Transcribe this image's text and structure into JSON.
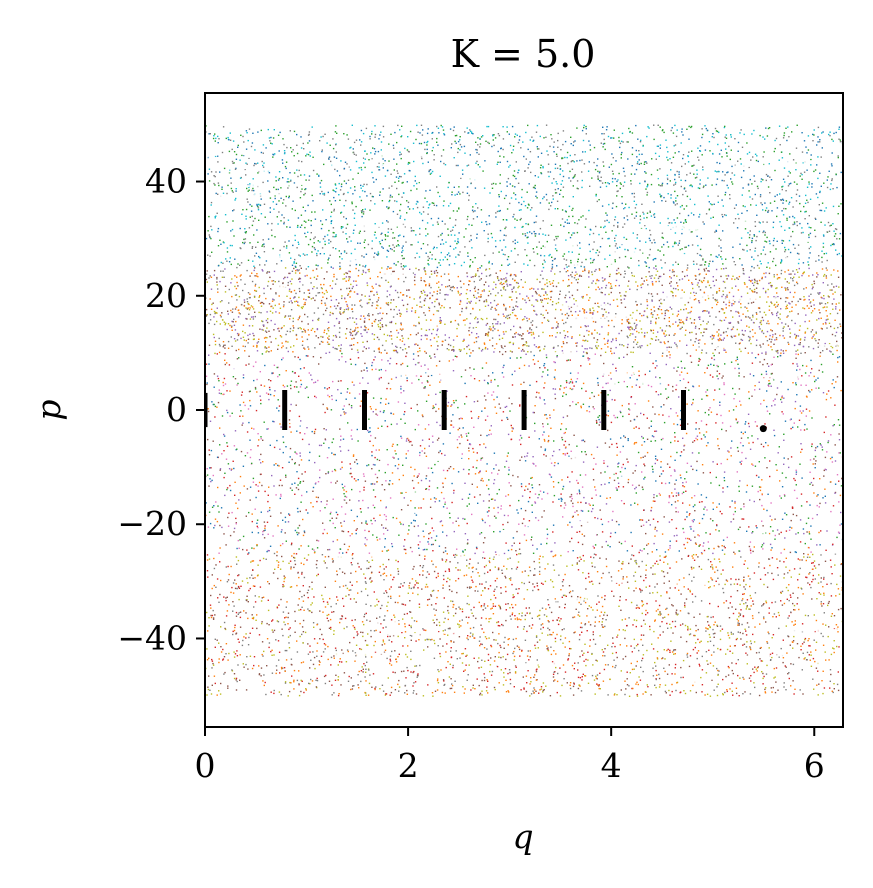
{
  "chart_data": {
    "type": "scatter",
    "title": "K = 5.0",
    "xlabel": "q",
    "ylabel": "p",
    "xlim": [
      0,
      6.283
    ],
    "ylim": [
      -55.5,
      55.5
    ],
    "xticks": [
      0,
      2,
      4,
      6
    ],
    "xtick_labels": [
      "0",
      "2",
      "4",
      "6"
    ],
    "yticks": [
      -40,
      -20,
      0,
      20,
      40
    ],
    "ytick_labels": [
      "−40",
      "−20",
      "0",
      "20",
      "40"
    ],
    "grid": false,
    "legend": "none",
    "description_of_data": "Standard map phase portrait: many chaotic orbits fill p in [-50, 50] across q in [0, 2π]; short vertical black segments mark resonant islands near p = 0.",
    "colors_by_band": [
      {
        "p_range": [
          25,
          50
        ],
        "colors": [
          "#1f77b4",
          "#17becf",
          "#2ca02c",
          "#7f7f7f"
        ]
      },
      {
        "p_range": [
          10,
          25
        ],
        "colors": [
          "#ff7f0e",
          "#8c564b",
          "#9467bd",
          "#bcbd22",
          "#7f7f7f"
        ]
      },
      {
        "p_range": [
          -25,
          10
        ],
        "colors": [
          "#d62728",
          "#ff7f0e",
          "#9467bd",
          "#1f77b4",
          "#8c564b",
          "#e377c2",
          "#2ca02c"
        ]
      },
      {
        "p_range": [
          -50,
          -25
        ],
        "colors": [
          "#bcbd22",
          "#ff7f0e",
          "#8c564b",
          "#d62728",
          "#7f7f7f"
        ]
      }
    ],
    "island_segments": [
      {
        "q": 0.0,
        "p_min": -3,
        "p_max": 3
      },
      {
        "q": 0.785,
        "p_min": -3.5,
        "p_max": 3.5
      },
      {
        "q": 1.571,
        "p_min": -3.5,
        "p_max": 3.5
      },
      {
        "q": 2.356,
        "p_min": -3.5,
        "p_max": 3.5
      },
      {
        "q": 3.142,
        "p_min": -3.5,
        "p_max": 3.5
      },
      {
        "q": 3.927,
        "p_min": -3.5,
        "p_max": 3.5
      },
      {
        "q": 4.712,
        "p_min": -3.5,
        "p_max": 3.5
      },
      {
        "q": 5.498,
        "p_min": -3.5,
        "p_max": -3.0
      }
    ],
    "chaotic_region": {
      "q_range": [
        0,
        6.283
      ],
      "p_range": [
        -50,
        50
      ]
    }
  }
}
